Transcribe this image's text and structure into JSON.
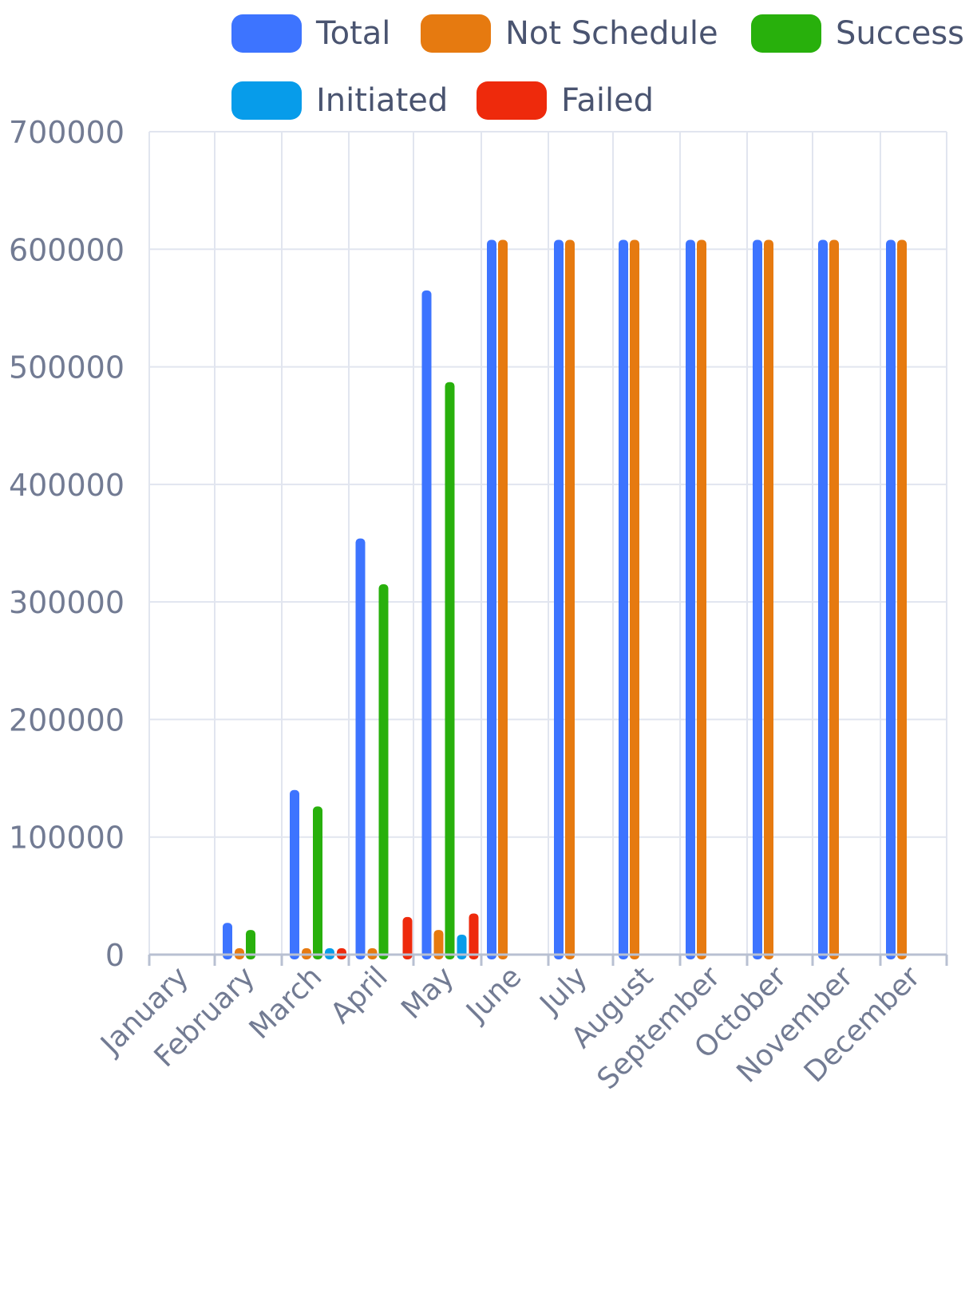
{
  "chart_data": {
    "type": "bar",
    "categories": [
      "January",
      "February",
      "March",
      "April",
      "May",
      "June",
      "July",
      "August",
      "September",
      "October",
      "November",
      "December"
    ],
    "series": [
      {
        "name": "Total",
        "color": "#3d74ff",
        "values": [
          0,
          27000,
          140000,
          354000,
          565000,
          608000,
          608000,
          608000,
          608000,
          608000,
          608000,
          608000
        ]
      },
      {
        "name": "Not Schedule",
        "color": "#e67a10",
        "values": [
          0,
          4000,
          4000,
          4000,
          21000,
          608000,
          608000,
          608000,
          608000,
          608000,
          608000,
          608000
        ]
      },
      {
        "name": "Success",
        "color": "#28b00c",
        "values": [
          0,
          21000,
          126000,
          315000,
          487000,
          0,
          0,
          0,
          0,
          0,
          0,
          0
        ]
      },
      {
        "name": "Initiated",
        "color": "#079cea",
        "values": [
          0,
          0,
          2000,
          0,
          17000,
          0,
          0,
          0,
          0,
          0,
          0,
          0
        ]
      },
      {
        "name": "Failed",
        "color": "#ee2a0c",
        "values": [
          0,
          0,
          2000,
          32000,
          35000,
          0,
          0,
          0,
          0,
          0,
          0,
          0
        ]
      }
    ],
    "yticks": [
      "0",
      "100000",
      "200000",
      "300000",
      "400000",
      "500000",
      "600000",
      "700000"
    ],
    "ylim": [
      0,
      700000
    ],
    "grid": true,
    "legend": "top"
  },
  "colors": {
    "grid": "#e1e5ef",
    "axis": "#b8c0d2",
    "label": "#727b93",
    "legend_text": "#4a5470"
  }
}
